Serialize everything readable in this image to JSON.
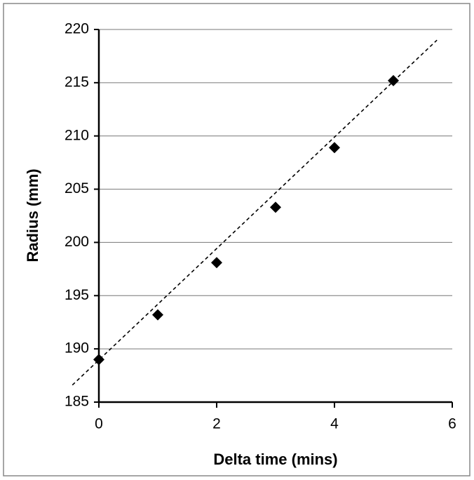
{
  "chart_data": {
    "type": "scatter",
    "xlabel": "Delta time (mins)",
    "ylabel": "Radius (mm)",
    "x": [
      0,
      1,
      2,
      3,
      4,
      5
    ],
    "values": [
      189.0,
      193.2,
      198.1,
      203.3,
      208.9,
      215.2
    ],
    "color": "#000000",
    "trendline": {
      "x": [
        -0.45,
        5.74
      ],
      "y": [
        186.6,
        219.0
      ],
      "color": "#000000",
      "dashed": true
    },
    "xlim": [
      0,
      6
    ],
    "xticks": [
      0,
      2,
      4,
      6
    ],
    "ylim": [
      185,
      220
    ],
    "yticks": [
      185,
      190,
      195,
      200,
      205,
      210,
      215,
      220
    ],
    "grid": true
  }
}
